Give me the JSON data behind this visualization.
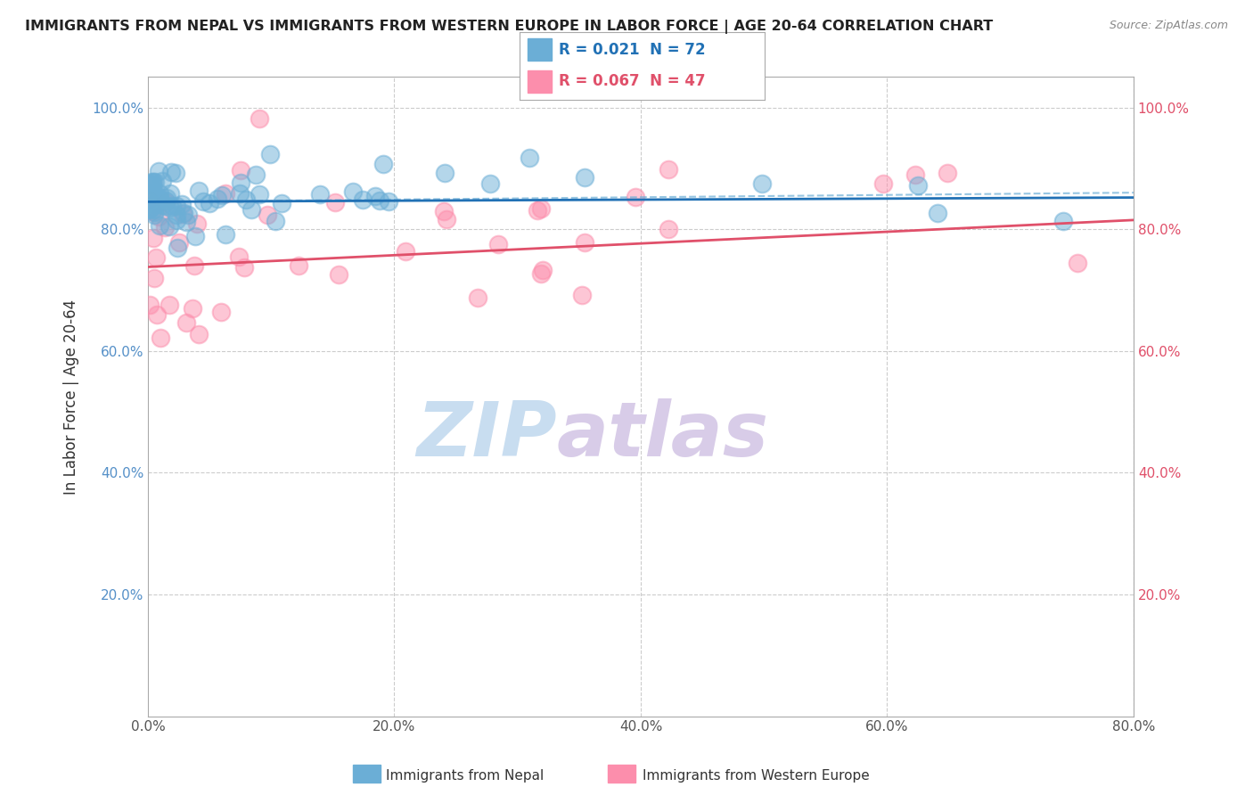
{
  "title": "IMMIGRANTS FROM NEPAL VS IMMIGRANTS FROM WESTERN EUROPE IN LABOR FORCE | AGE 20-64 CORRELATION CHART",
  "source": "Source: ZipAtlas.com",
  "ylabel": "In Labor Force | Age 20-64",
  "xlim": [
    0.0,
    0.8
  ],
  "ylim": [
    0.0,
    1.05
  ],
  "yticks": [
    0.0,
    0.2,
    0.4,
    0.6,
    0.8,
    1.0
  ],
  "ytick_labels": [
    "",
    "20.0%",
    "40.0%",
    "60.0%",
    "80.0%",
    "100.0%"
  ],
  "xticks": [
    0.0,
    0.2,
    0.4,
    0.6,
    0.8
  ],
  "xtick_labels": [
    "0.0%",
    "20.0%",
    "40.0%",
    "60.0%",
    "80.0%"
  ],
  "nepal_R": 0.021,
  "nepal_N": 72,
  "weurope_R": 0.067,
  "weurope_N": 47,
  "nepal_color": "#6baed6",
  "weurope_color": "#fc8eac",
  "nepal_line_color": "#2171b5",
  "weurope_line_color": "#e0506a",
  "background_color": "#ffffff",
  "grid_color": "#cccccc",
  "legend_label_nepal": "Immigrants from Nepal",
  "legend_label_weurope": "Immigrants from Western Europe",
  "nepal_line_x": [
    0.0,
    0.8
  ],
  "nepal_line_y": [
    0.845,
    0.852
  ],
  "weurope_line_x": [
    0.0,
    0.8
  ],
  "weurope_line_y": [
    0.738,
    0.815
  ],
  "watermark_text": "ZIPatlas",
  "watermark_zip": "ZIP",
  "watermark_atlas": "atlas"
}
